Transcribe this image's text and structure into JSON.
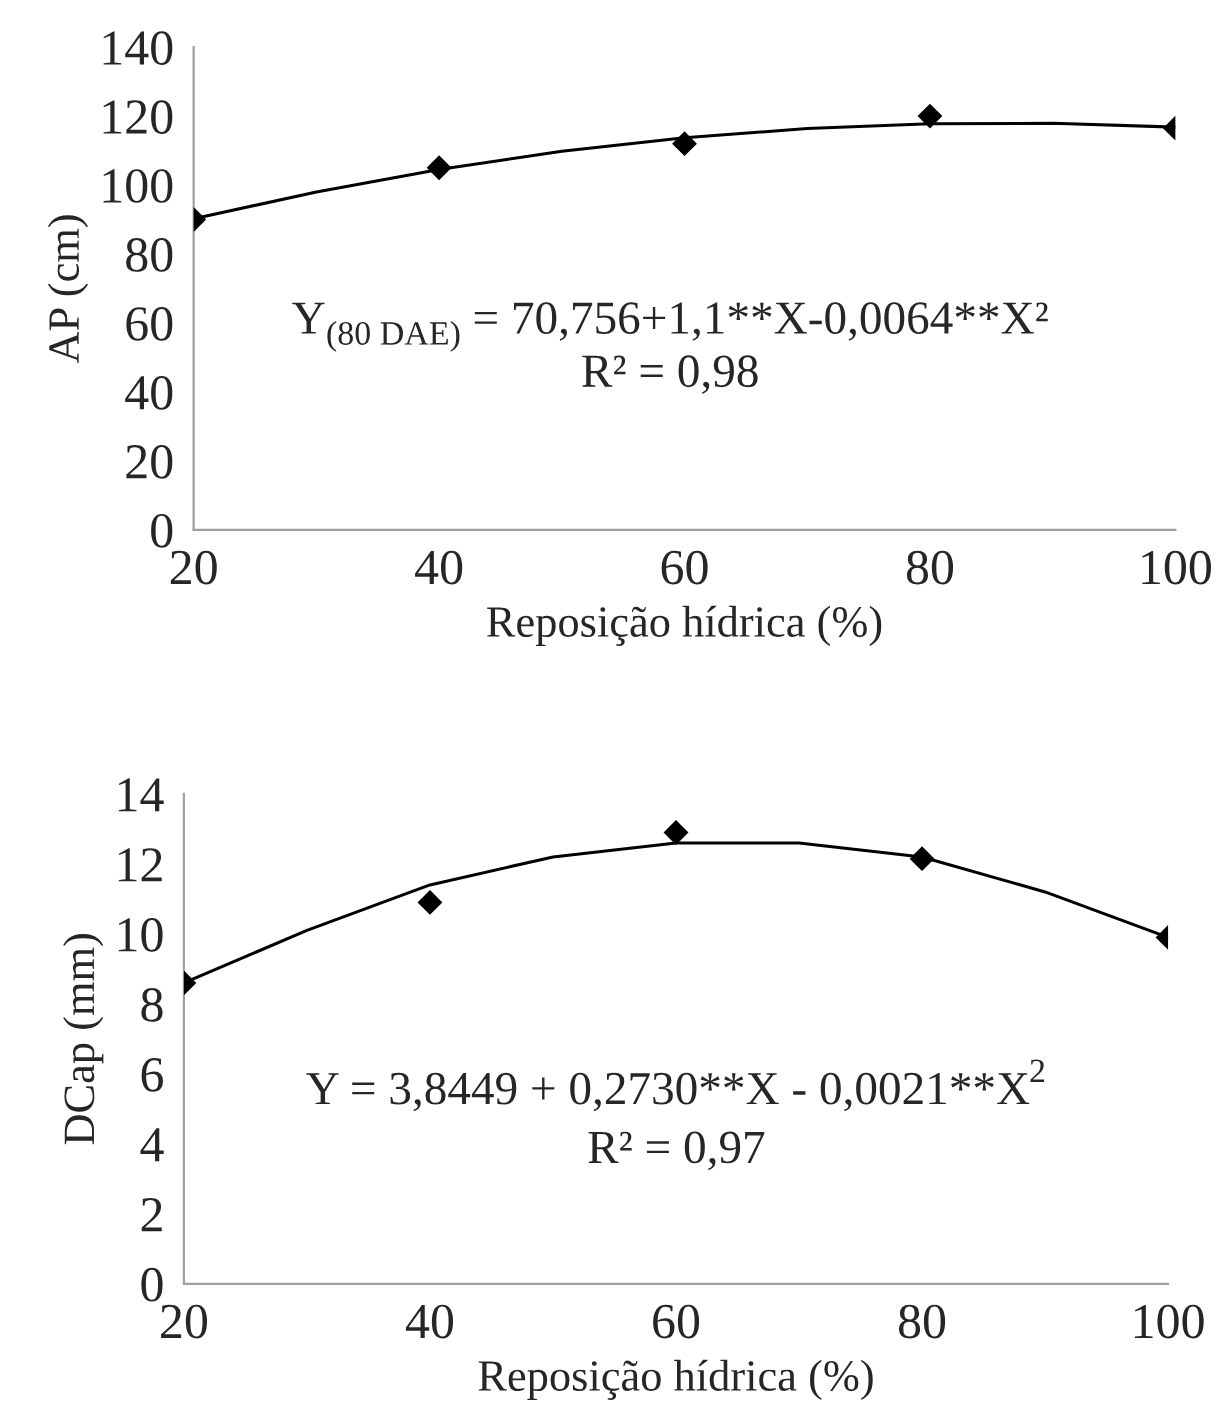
{
  "chart_data": [
    {
      "type": "scatter",
      "xlabel": "Reposição hídrica (%)",
      "ylabel": "AP (cm)",
      "xlim": [
        20,
        100
      ],
      "xticks": [
        20,
        40,
        60,
        80,
        100
      ],
      "ylim": [
        0,
        140
      ],
      "yticks": [
        0,
        20,
        40,
        60,
        80,
        100,
        120,
        140
      ],
      "grid": false,
      "legend": false,
      "marker": "diamond",
      "annotations": [
        "Y$_{(80 DAE)}$ = 70,756+1,1**X-0,0064**X²",
        "R² = 0,98"
      ],
      "series": [
        {
          "color": "#000000",
          "x": [
            20,
            40,
            60,
            80,
            100
          ],
          "values": [
            90,
            105,
            112,
            120,
            116.5
          ]
        },
        {
          "type": "line",
          "color": "#000000",
          "marker": "none",
          "line_style": "solid",
          "x": [
            20,
            30,
            40,
            50,
            60,
            70,
            80,
            90,
            100
          ],
          "values": [
            90.2,
            98,
            104.5,
            109.8,
            113.7,
            116.4,
            117.8,
            117.9,
            116.8
          ]
        }
      ]
    },
    {
      "type": "scatter",
      "xlabel": "Reposição hídrica (%)",
      "ylabel": "DCap (mm)",
      "xlim": [
        20,
        100
      ],
      "xticks": [
        20,
        40,
        60,
        80,
        100
      ],
      "ylim": [
        0,
        14
      ],
      "yticks": [
        0,
        2,
        4,
        6,
        8,
        10,
        12,
        14
      ],
      "grid": false,
      "legend": false,
      "marker": "diamond",
      "annotations": [
        "Y = 3,8449 + 0,2730**X - 0,0021**X$^{2}$",
        "R² = 0,97"
      ],
      "series": [
        {
          "color": "#000000",
          "x": [
            20,
            40,
            60,
            80,
            100
          ],
          "values": [
            8.6,
            10.9,
            12.9,
            12.15,
            9.9
          ]
        },
        {
          "type": "line",
          "color": "#000000",
          "marker": "none",
          "line_style": "solid",
          "x": [
            20,
            30,
            40,
            50,
            60,
            70,
            80,
            90,
            100
          ],
          "values": [
            8.6,
            10.1,
            11.4,
            12.2,
            12.6,
            12.6,
            12.2,
            11.2,
            9.9
          ]
        }
      ]
    }
  ]
}
